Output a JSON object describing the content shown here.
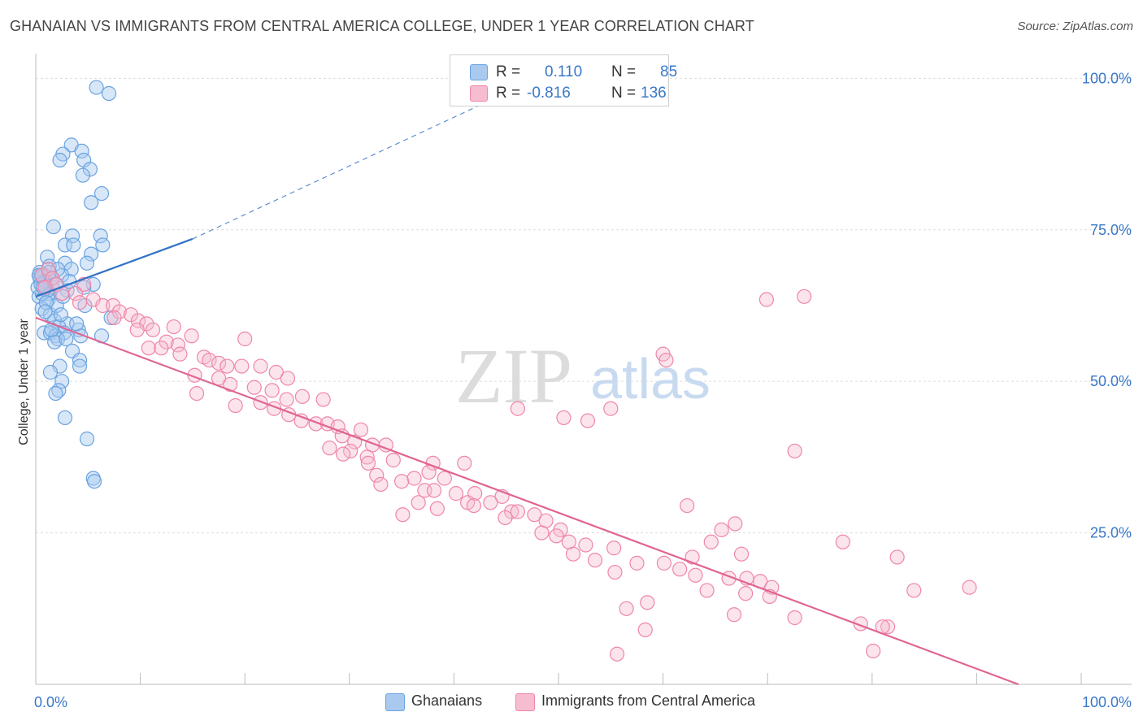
{
  "title": "GHANAIAN VS IMMIGRANTS FROM CENTRAL AMERICA COLLEGE, UNDER 1 YEAR CORRELATION CHART",
  "source": "Source: ZipAtlas.com",
  "watermark": {
    "zip": "ZIP",
    "atlas": "atlas"
  },
  "legend": {
    "r_label": "R =",
    "n_label": "N =",
    "series1": {
      "r": "0.110",
      "n": "85"
    },
    "series2": {
      "r": "-0.816",
      "n": "136"
    }
  },
  "colors": {
    "blue": "#6aa3e0",
    "blue_fill": "#a9c9ef",
    "blue_line": "#3272c6",
    "pink": "#ef86a8",
    "pink_fill": "#f6bcd0",
    "pink_line": "#e06493",
    "axis_text": "#3a78c9",
    "grid": "#dcdcdc"
  },
  "chart_data": {
    "type": "scatter",
    "title": "GHANAIAN VS IMMIGRANTS FROM CENTRAL AMERICA COLLEGE, UNDER 1 YEAR CORRELATION CHART",
    "xlabel": "",
    "ylabel": "College, Under 1 year",
    "xlim": [
      0,
      100
    ],
    "ylim": [
      0,
      103
    ],
    "x_tick_labels": [
      "0.0%",
      "100.0%"
    ],
    "y_ticks": [
      25,
      50,
      75,
      100
    ],
    "y_tick_labels": [
      "25.0%",
      "50.0%",
      "75.0%",
      "100.0%"
    ],
    "grid": true,
    "series": [
      {
        "name": "Ghanaians",
        "r": 0.11,
        "n": 85,
        "trend": {
          "x0": 0,
          "y0": 64.0,
          "x1": 15,
          "y1": 73.5,
          "dash_to_x": 48,
          "dash_to_y": 100
        },
        "points": [
          [
            5.8,
            98.5
          ],
          [
            7.0,
            97.5
          ],
          [
            3.4,
            89.0
          ],
          [
            4.4,
            88.0
          ],
          [
            2.6,
            87.5
          ],
          [
            2.3,
            86.5
          ],
          [
            4.6,
            86.5
          ],
          [
            5.2,
            85.0
          ],
          [
            4.5,
            84.0
          ],
          [
            6.3,
            81.0
          ],
          [
            5.3,
            79.5
          ],
          [
            1.7,
            75.5
          ],
          [
            3.5,
            74.0
          ],
          [
            6.2,
            74.0
          ],
          [
            2.8,
            72.5
          ],
          [
            6.4,
            72.5
          ],
          [
            3.6,
            72.5
          ],
          [
            5.3,
            71.0
          ],
          [
            1.1,
            70.5
          ],
          [
            2.8,
            69.5
          ],
          [
            4.9,
            69.5
          ],
          [
            1.3,
            69.0
          ],
          [
            3.4,
            68.5
          ],
          [
            0.4,
            68.0
          ],
          [
            0.8,
            67.5
          ],
          [
            2.5,
            67.5
          ],
          [
            0.4,
            67.0
          ],
          [
            0.7,
            66.5
          ],
          [
            5.5,
            66.0
          ],
          [
            0.9,
            66.0
          ],
          [
            1.6,
            65.5
          ],
          [
            4.6,
            65.5
          ],
          [
            3.0,
            65.0
          ],
          [
            1.2,
            64.5
          ],
          [
            0.3,
            64.0
          ],
          [
            1.2,
            63.5
          ],
          [
            4.7,
            62.5
          ],
          [
            0.6,
            62.0
          ],
          [
            1.4,
            61.0
          ],
          [
            7.2,
            60.5
          ],
          [
            1.8,
            60.0
          ],
          [
            3.0,
            59.5
          ],
          [
            2.2,
            59.0
          ],
          [
            4.1,
            58.5
          ],
          [
            0.8,
            58.0
          ],
          [
            1.4,
            58.0
          ],
          [
            2.7,
            58.0
          ],
          [
            1.9,
            57.5
          ],
          [
            6.3,
            57.5
          ],
          [
            4.3,
            57.5
          ],
          [
            2.1,
            57.0
          ],
          [
            1.8,
            56.5
          ],
          [
            3.5,
            55.0
          ],
          [
            4.2,
            53.5
          ],
          [
            4.2,
            52.5
          ],
          [
            2.3,
            52.5
          ],
          [
            1.4,
            51.5
          ],
          [
            2.5,
            50.0
          ],
          [
            2.2,
            48.5
          ],
          [
            1.9,
            48.0
          ],
          [
            2.8,
            44.0
          ],
          [
            4.9,
            40.5
          ],
          [
            5.5,
            34.0
          ],
          [
            5.6,
            33.5
          ],
          [
            0.5,
            67.5
          ],
          [
            0.9,
            66.5
          ],
          [
            1.1,
            65.0
          ],
          [
            0.6,
            64.5
          ],
          [
            2.0,
            62.5
          ],
          [
            2.4,
            61.0
          ],
          [
            1.5,
            58.5
          ],
          [
            3.9,
            59.5
          ],
          [
            2.9,
            57.0
          ],
          [
            1.0,
            63.0
          ],
          [
            0.2,
            65.5
          ],
          [
            0.5,
            66.0
          ],
          [
            1.6,
            67.0
          ],
          [
            0.3,
            67.5
          ],
          [
            2.1,
            68.5
          ],
          [
            3.2,
            66.5
          ],
          [
            2.6,
            64.0
          ],
          [
            0.9,
            61.5
          ],
          [
            1.3,
            68.0
          ],
          [
            0.7,
            65.5
          ],
          [
            1.9,
            66.0
          ]
        ]
      },
      {
        "name": "Immigrants from Central America",
        "r": -0.816,
        "n": 136,
        "trend": {
          "x0": 0,
          "y0": 60.5,
          "x1": 94,
          "y1": 0
        },
        "points": [
          [
            0.6,
            67.5
          ],
          [
            1.2,
            68.5
          ],
          [
            1.6,
            67.0
          ],
          [
            2.0,
            66.0
          ],
          [
            0.9,
            65.5
          ],
          [
            4.6,
            66.0
          ],
          [
            3.8,
            64.5
          ],
          [
            2.5,
            64.5
          ],
          [
            5.5,
            63.5
          ],
          [
            4.2,
            63.0
          ],
          [
            6.4,
            62.5
          ],
          [
            7.4,
            62.5
          ],
          [
            8.0,
            61.5
          ],
          [
            9.1,
            61.0
          ],
          [
            7.5,
            60.5
          ],
          [
            9.8,
            60.0
          ],
          [
            10.6,
            59.5
          ],
          [
            11.2,
            58.5
          ],
          [
            13.2,
            59.0
          ],
          [
            9.7,
            58.5
          ],
          [
            14.9,
            57.5
          ],
          [
            20.0,
            57.0
          ],
          [
            12.5,
            56.5
          ],
          [
            13.6,
            56.0
          ],
          [
            10.8,
            55.5
          ],
          [
            12.0,
            55.5
          ],
          [
            13.8,
            54.5
          ],
          [
            16.1,
            54.0
          ],
          [
            16.6,
            53.5
          ],
          [
            17.5,
            53.0
          ],
          [
            18.3,
            52.5
          ],
          [
            19.7,
            52.5
          ],
          [
            21.5,
            52.5
          ],
          [
            23.0,
            51.5
          ],
          [
            15.2,
            51.0
          ],
          [
            17.5,
            50.5
          ],
          [
            24.1,
            50.5
          ],
          [
            18.6,
            49.5
          ],
          [
            20.9,
            49.0
          ],
          [
            22.6,
            48.5
          ],
          [
            15.4,
            48.0
          ],
          [
            25.5,
            47.5
          ],
          [
            24.0,
            47.0
          ],
          [
            27.5,
            47.0
          ],
          [
            21.5,
            46.5
          ],
          [
            19.1,
            46.0
          ],
          [
            22.8,
            45.5
          ],
          [
            24.2,
            44.5
          ],
          [
            25.4,
            43.5
          ],
          [
            26.8,
            43.0
          ],
          [
            27.9,
            43.0
          ],
          [
            28.9,
            42.5
          ],
          [
            31.1,
            42.0
          ],
          [
            29.3,
            41.0
          ],
          [
            30.5,
            40.0
          ],
          [
            32.2,
            39.5
          ],
          [
            33.5,
            39.5
          ],
          [
            28.1,
            39.0
          ],
          [
            30.1,
            38.5
          ],
          [
            29.4,
            38.0
          ],
          [
            31.7,
            37.5
          ],
          [
            34.2,
            37.0
          ],
          [
            31.8,
            36.5
          ],
          [
            38.0,
            36.5
          ],
          [
            41.0,
            36.5
          ],
          [
            37.6,
            35.0
          ],
          [
            32.6,
            34.5
          ],
          [
            36.2,
            34.0
          ],
          [
            39.1,
            34.0
          ],
          [
            35.0,
            33.5
          ],
          [
            33.0,
            33.0
          ],
          [
            37.2,
            32.0
          ],
          [
            38.1,
            32.0
          ],
          [
            40.2,
            31.5
          ],
          [
            42.0,
            31.5
          ],
          [
            44.6,
            31.0
          ],
          [
            36.6,
            30.0
          ],
          [
            41.3,
            30.0
          ],
          [
            43.5,
            30.0
          ],
          [
            41.9,
            29.5
          ],
          [
            38.4,
            29.0
          ],
          [
            45.5,
            28.5
          ],
          [
            46.1,
            28.5
          ],
          [
            47.7,
            28.0
          ],
          [
            35.1,
            28.0
          ],
          [
            44.9,
            27.5
          ],
          [
            48.8,
            27.0
          ],
          [
            50.2,
            25.5
          ],
          [
            48.4,
            25.0
          ],
          [
            49.8,
            24.5
          ],
          [
            51.0,
            23.5
          ],
          [
            52.6,
            23.0
          ],
          [
            55.3,
            22.5
          ],
          [
            51.4,
            21.5
          ],
          [
            53.5,
            20.5
          ],
          [
            57.5,
            20.0
          ],
          [
            60.1,
            20.0
          ],
          [
            61.6,
            19.0
          ],
          [
            55.4,
            18.5
          ],
          [
            63.1,
            18.0
          ],
          [
            66.3,
            17.5
          ],
          [
            68.0,
            17.5
          ],
          [
            69.3,
            17.0
          ],
          [
            70.4,
            16.0
          ],
          [
            64.2,
            15.5
          ],
          [
            67.9,
            15.0
          ],
          [
            70.2,
            14.5
          ],
          [
            58.5,
            13.5
          ],
          [
            56.5,
            12.5
          ],
          [
            66.8,
            11.5
          ],
          [
            72.6,
            11.0
          ],
          [
            78.9,
            10.0
          ],
          [
            81.5,
            9.5
          ],
          [
            58.3,
            9.0
          ],
          [
            55.6,
            5.0
          ],
          [
            52.8,
            43.5
          ],
          [
            46.1,
            45.5
          ],
          [
            50.5,
            44.0
          ],
          [
            55.0,
            45.5
          ],
          [
            69.9,
            63.5
          ],
          [
            73.5,
            64.0
          ],
          [
            72.6,
            38.5
          ],
          [
            60.0,
            54.5
          ],
          [
            60.3,
            53.5
          ],
          [
            81.0,
            9.5
          ],
          [
            84.0,
            15.5
          ],
          [
            89.3,
            16.0
          ],
          [
            82.4,
            21.0
          ],
          [
            77.2,
            23.5
          ],
          [
            66.9,
            26.5
          ],
          [
            65.6,
            25.5
          ],
          [
            62.3,
            29.5
          ],
          [
            64.6,
            23.5
          ],
          [
            67.5,
            21.5
          ],
          [
            62.8,
            21.0
          ],
          [
            80.1,
            5.5
          ]
        ]
      }
    ]
  }
}
